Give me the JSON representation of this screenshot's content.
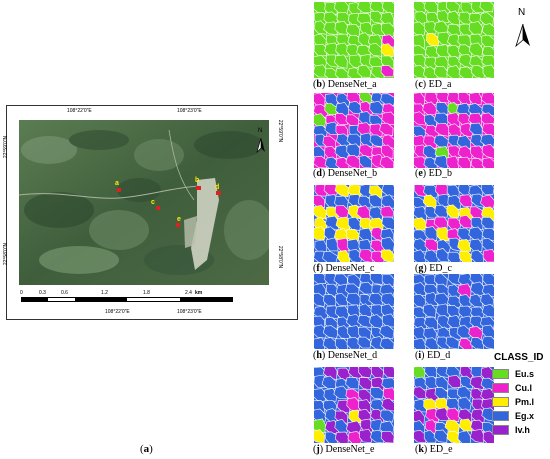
{
  "main_map": {
    "caption_letter": "a",
    "top_ticks": [
      "108°22'0\"E",
      "108°23'0\"E"
    ],
    "bottom_ticks": [
      "108°22'0\"E",
      "108°23'0\"E"
    ],
    "left_ticks": [
      "22°59'0\"N",
      "22°58'0\"N"
    ],
    "right_ticks": [
      "22°59'0\"N",
      "22°58'0\"N"
    ],
    "north_label": "N",
    "scale_labels": [
      "0",
      "0.3",
      "0.6",
      "1.2",
      "1.8",
      "2.4"
    ],
    "scale_unit": "km",
    "site_labels": [
      "a",
      "b",
      "c",
      "d",
      "e"
    ]
  },
  "north_arrow_label": "N",
  "panels": [
    {
      "letter": "b",
      "name": "DenseNet_a"
    },
    {
      "letter": "c",
      "name": "ED_a"
    },
    {
      "letter": "d",
      "name": "DenseNet_b"
    },
    {
      "letter": "e",
      "name": "ED_b"
    },
    {
      "letter": "f",
      "name": "DenseNet_c"
    },
    {
      "letter": "g",
      "name": "ED_c"
    },
    {
      "letter": "h",
      "name": "DenseNet_d"
    },
    {
      "letter": "i",
      "name": "ED_d"
    },
    {
      "letter": "j",
      "name": "DenseNet_e"
    },
    {
      "letter": "k",
      "name": "ED_e"
    }
  ],
  "legend": {
    "title": "CLASS_ID",
    "items": [
      {
        "label": "Eu.s",
        "color": "#66dd22"
      },
      {
        "label": "Cu.l",
        "color": "#ee22cc"
      },
      {
        "label": "Pm.l",
        "color": "#ffee00"
      },
      {
        "label": "Eg.x",
        "color": "#3366dd"
      },
      {
        "label": "Iv.h",
        "color": "#9922cc"
      }
    ]
  }
}
